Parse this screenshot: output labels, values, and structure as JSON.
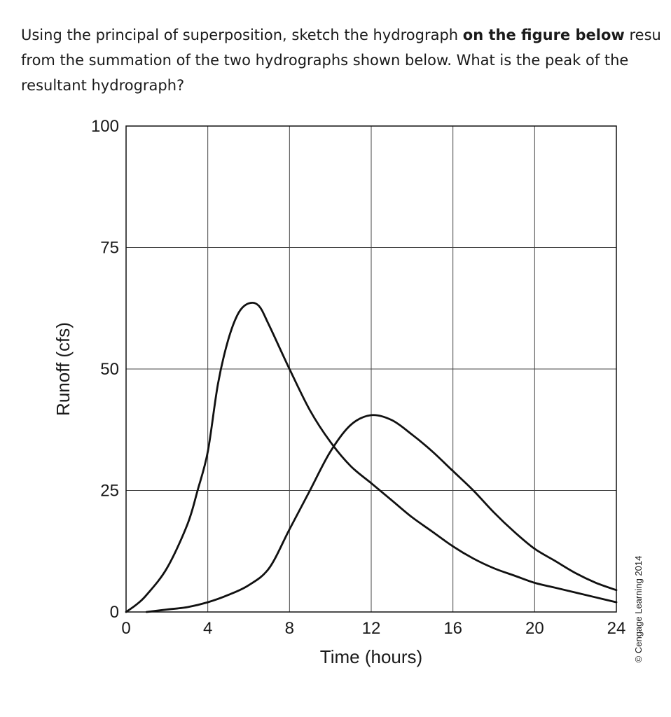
{
  "question": {
    "line1_before": "Using the principal of superposition, sketch the hydrograph ",
    "line1_bold": "on the figure below",
    "line1_after": " resu",
    "line2": "from the summation of the two hydrographs shown below. What is the peak of the",
    "line3": "resultant hydrograph?"
  },
  "chart_data": {
    "type": "line",
    "xlabel": "Time (hours)",
    "ylabel": "Runoff (cfs)",
    "xlim": [
      0,
      24
    ],
    "ylim": [
      0,
      100
    ],
    "x_ticks": [
      "0",
      "4",
      "8",
      "12",
      "16",
      "20",
      "24"
    ],
    "y_ticks": [
      "0",
      "25",
      "50",
      "75",
      "100"
    ],
    "grid": true,
    "line_color": "#111111",
    "series": [
      {
        "x": [
          0,
          0.5,
          1,
          2,
          3,
          3.5,
          4,
          4.5,
          5,
          5.5,
          6,
          6.5,
          7,
          8,
          9,
          10,
          11,
          12,
          13,
          14,
          15,
          16,
          17,
          18,
          19,
          20,
          21,
          22,
          23,
          24
        ],
        "y": [
          0,
          1.5,
          3.5,
          9,
          18,
          25,
          33,
          47,
          56,
          61.5,
          63.5,
          63,
          59,
          50,
          41.5,
          35,
          30,
          26.5,
          23,
          19.5,
          16.5,
          13.5,
          11,
          9,
          7.5,
          6,
          5,
          4,
          3,
          2
        ]
      },
      {
        "x": [
          1,
          2,
          3,
          4,
          5,
          6,
          7,
          8,
          9,
          10,
          11,
          12,
          13,
          14,
          15,
          16,
          17,
          18,
          19,
          20,
          21,
          22,
          23,
          24
        ],
        "y": [
          0,
          0.5,
          1,
          2,
          3.5,
          5.5,
          9,
          17,
          25,
          33,
          38.5,
          40.5,
          39.5,
          36.5,
          33,
          29,
          25,
          20.5,
          16.5,
          13,
          10.5,
          8,
          6,
          4.5
        ]
      }
    ]
  },
  "credit": "© Cengage Learning 2014"
}
